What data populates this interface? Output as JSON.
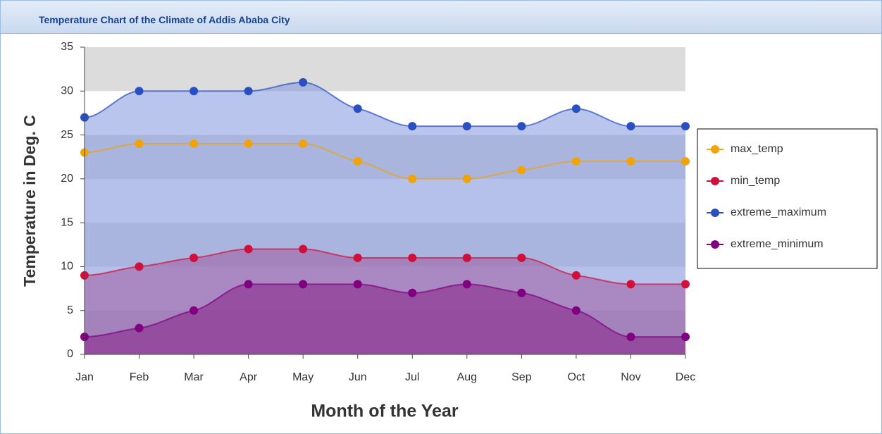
{
  "chart_data": {
    "type": "area",
    "title": "Temperature Chart of the Climate of Addis Ababa City",
    "y_label": "Temperature in Deg. C",
    "x_label": "Month of the Year",
    "categories": [
      "Jan",
      "Feb",
      "Mar",
      "Apr",
      "May",
      "Jun",
      "Jul",
      "Aug",
      "Sep",
      "Oct",
      "Nov",
      "Dec"
    ],
    "series": [
      {
        "name": "max_temp",
        "color": "#f0a30a",
        "area_color": "#aab6e6",
        "values": [
          23,
          24,
          24,
          24,
          24,
          22,
          20,
          20,
          21,
          22,
          22,
          22
        ]
      },
      {
        "name": "min_temp",
        "color": "#d0103a",
        "area_color": "#a05aa0",
        "values": [
          9,
          10,
          11,
          12,
          12,
          11,
          11,
          11,
          11,
          9,
          8,
          8
        ]
      },
      {
        "name": "extreme_maximum",
        "color": "#2a4fc0",
        "area_color": "#8096dc",
        "values": [
          27,
          30,
          30,
          30,
          31,
          28,
          26,
          26,
          26,
          28,
          26,
          26
        ]
      },
      {
        "name": "extreme_minimum",
        "color": "#800080",
        "area_color": "#8a2a8a",
        "values": [
          2,
          3,
          5,
          8,
          8,
          8,
          7,
          8,
          7,
          5,
          2,
          2
        ]
      }
    ],
    "ylim": [
      0,
      35
    ],
    "yticks": [
      0,
      5,
      10,
      15,
      20,
      25,
      30,
      35
    ],
    "grid": "bands",
    "legend": "right"
  }
}
